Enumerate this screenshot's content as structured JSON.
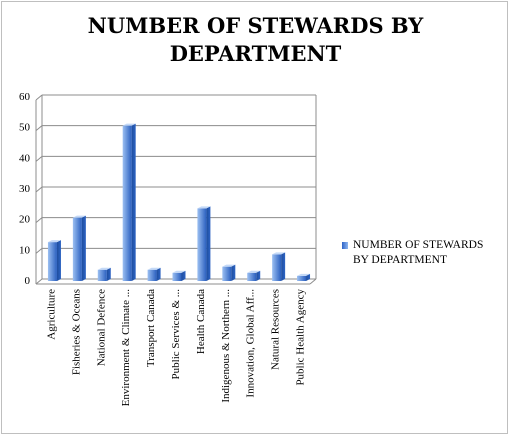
{
  "chart_data": {
    "type": "bar",
    "title_line1": "NUMBER OF STEWARDS BY",
    "title_line2": "DEPARTMENT",
    "categories": [
      "Agriculture",
      "Fisheries & Oceans",
      "National Defence",
      "Environment & Climate ...",
      "Transport Canada",
      "Public Services & ...",
      "Health Canada",
      "Indigenous & Northern ...",
      "Innovation, Global Aff...",
      "Natural Resources",
      "Public Health Agency"
    ],
    "series": [
      {
        "name": "NUMBER OF STEWARDS BY DEPARTMENT",
        "values": [
          13,
          21,
          4,
          51,
          4,
          3,
          24,
          5,
          3,
          9,
          2
        ]
      }
    ],
    "legend_line1": "NUMBER OF STEWARDS",
    "legend_line2": "BY DEPARTMENT",
    "yticks": [
      "0",
      "10",
      "20",
      "30",
      "40",
      "50",
      "60"
    ],
    "ylim": [
      0,
      60
    ],
    "grid": true,
    "legend_position": "right",
    "colors": {
      "bar_dark": "#2a5fbf",
      "bar_light": "#9cc0f2",
      "bar_top": "#c4d9f7",
      "grid": "#8c8c8c"
    }
  }
}
